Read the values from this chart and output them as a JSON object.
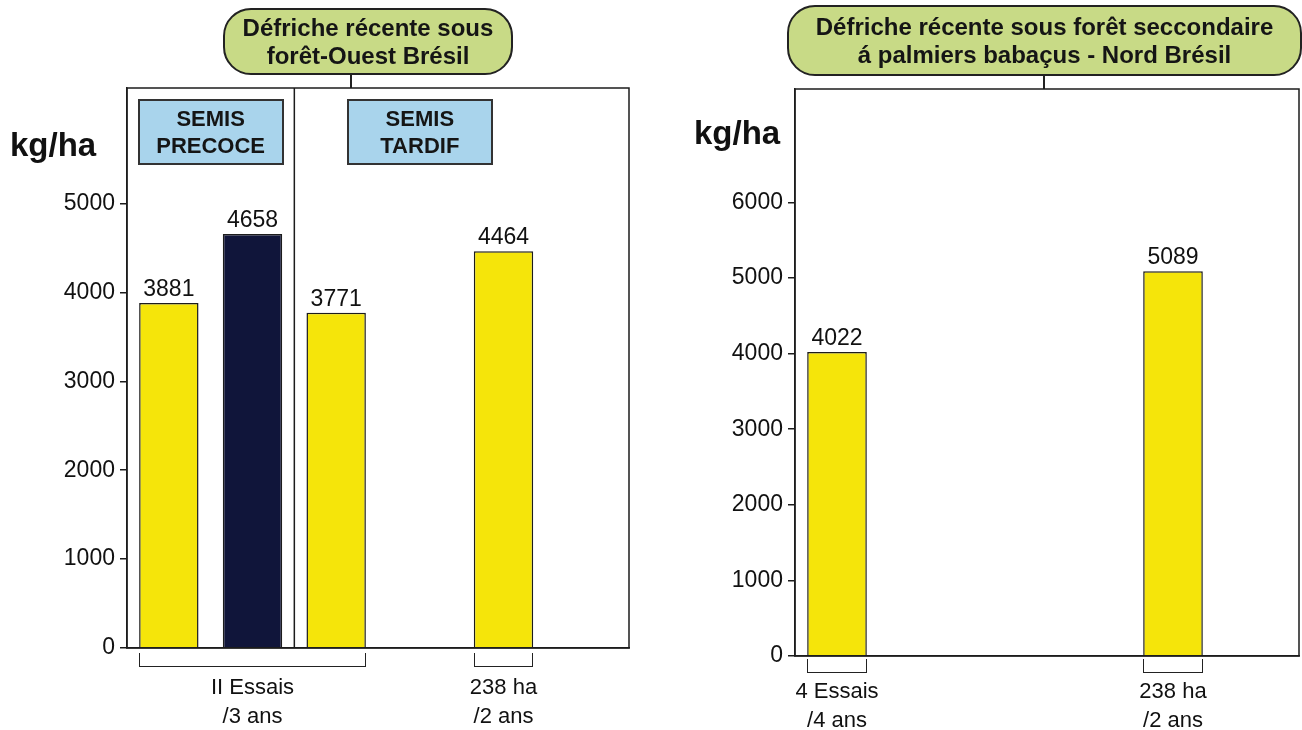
{
  "chart_data": [
    {
      "type": "bar",
      "title": "Défriche récente sous\nforêt-Ouest Brésil",
      "ylabel": "kg/ha",
      "categories": [
        null,
        "II Essais\n/3 ans",
        null,
        null,
        "238 ha\n/2 ans",
        null
      ],
      "values": [
        3881,
        4658,
        3771,
        null,
        4464,
        null
      ],
      "colors": [
        "#f5e50a",
        "#10153a",
        "#f5e50a",
        null,
        "#f5e50a",
        null
      ],
      "ylim": [
        0,
        6300
      ],
      "yticks": [
        0,
        1000,
        2000,
        3000,
        4000,
        5000
      ],
      "data_labels": true,
      "annotations": [
        "SEMIS\nPRECOCE",
        "SEMIS\nTARDIF"
      ]
    },
    {
      "type": "bar",
      "title": "Défriche récente sous forêt seccondaire\ná palmiers babaçus - Nord Brésil",
      "ylabel": "kg/ha",
      "categories": [
        "4 Essais\n/4 ans",
        null,
        null,
        null,
        "238 ha\n/2 ans",
        null
      ],
      "values": [
        4022,
        null,
        null,
        null,
        5089,
        null
      ],
      "colors": [
        "#f5e50a",
        null,
        null,
        null,
        "#f5e50a",
        null
      ],
      "ylim": [
        0,
        7500
      ],
      "yticks": [
        0,
        1000,
        2000,
        3000,
        4000,
        5000,
        6000
      ],
      "data_labels": true
    }
  ]
}
